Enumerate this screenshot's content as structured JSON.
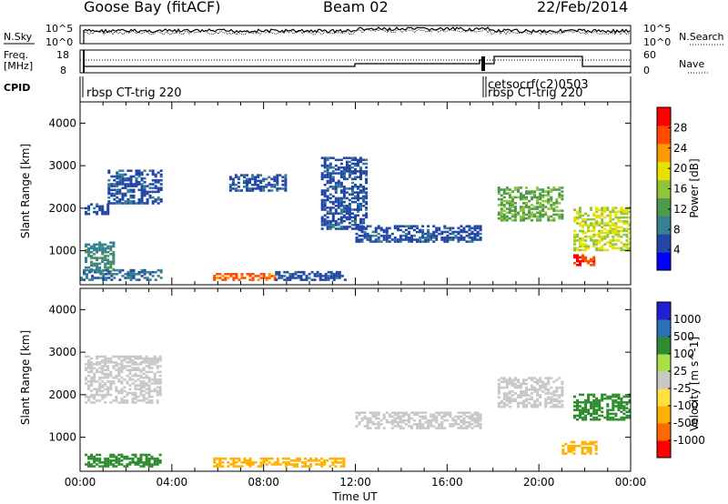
{
  "header": {
    "site": "Goose Bay (fitACF)",
    "beam": "Beam 02",
    "date": "22/Feb/2014"
  },
  "labels": {
    "nsky": "N.Sky",
    "nsearch": "N.Search",
    "freq_line1": "Freq.",
    "freq_line2": "[MHz]",
    "nave": "Nave",
    "cpid": "CPID",
    "cpid_main": "rbsp CT-trig 220",
    "cpid_mid_1": "cetsocrf(c2)0503",
    "cpid_mid_2": "rbsp CT-trig 220"
  },
  "ticks": {
    "nsky": [
      "10^5",
      "10^0"
    ],
    "nsearch": [
      "10^5",
      "10^0"
    ],
    "freq": [
      "18",
      "8"
    ],
    "nave": [
      "60",
      "0"
    ]
  },
  "colors": {
    "power_scale": [
      "#0000ff",
      "#2347a6",
      "#36808f",
      "#4d9a4d",
      "#8fc53b",
      "#e8e000",
      "#ff9900",
      "#ff4a00",
      "#ff0000"
    ],
    "velocity_scale": [
      "#ff0000",
      "#ff6a00",
      "#ffb000",
      "#ffe040",
      "#c8c8c8",
      "#a8e04a",
      "#2e8c2e",
      "#2a70b8",
      "#2020d0"
    ]
  },
  "chart_data": [
    {
      "type": "heatmap",
      "title": "Power",
      "xlabel": "",
      "ylabel": "Slant Range [km]",
      "xlim": [
        "00:00",
        "24:00"
      ],
      "ylim": [
        200,
        4500
      ],
      "x_ticks": [
        "00:00",
        "04:00",
        "08:00",
        "12:00",
        "16:00",
        "20:00",
        "00:00"
      ],
      "y_ticks": [
        "1000",
        "2000",
        "3000",
        "4000"
      ],
      "colorbar_label": "Power [dB]",
      "colorbar_ticks": [
        "4",
        "8",
        "12",
        "16",
        "20",
        "24",
        "28"
      ],
      "colorbar_range": [
        0,
        32
      ],
      "features": [
        {
          "t_start": 0.2,
          "t_end": 1.2,
          "r_start": 1850,
          "r_end": 2100,
          "value": 6
        },
        {
          "t_start": 1.2,
          "t_end": 3.5,
          "r_start": 2100,
          "r_end": 2900,
          "value": 6
        },
        {
          "t_start": 0.2,
          "t_end": 1.5,
          "r_start": 500,
          "r_end": 1200,
          "value": 10
        },
        {
          "t_start": 0.0,
          "t_end": 3.5,
          "r_start": 300,
          "r_end": 550,
          "value": 8
        },
        {
          "t_start": 5.8,
          "t_end": 8.5,
          "r_start": 300,
          "r_end": 450,
          "value": 26
        },
        {
          "t_start": 8.5,
          "t_end": 11.5,
          "r_start": 300,
          "r_end": 500,
          "value": 6
        },
        {
          "t_start": 6.5,
          "t_end": 9.0,
          "r_start": 2400,
          "r_end": 2800,
          "value": 6
        },
        {
          "t_start": 10.5,
          "t_end": 12.5,
          "r_start": 1500,
          "r_end": 3200,
          "value": 6
        },
        {
          "t_start": 12.0,
          "t_end": 17.5,
          "r_start": 1200,
          "r_end": 1600,
          "value": 6
        },
        {
          "t_start": 18.2,
          "t_end": 21.0,
          "r_start": 1700,
          "r_end": 2500,
          "value": 14
        },
        {
          "t_start": 21.5,
          "t_end": 24.0,
          "r_start": 1000,
          "r_end": 2000,
          "value": 18
        },
        {
          "t_start": 21.5,
          "t_end": 22.4,
          "r_start": 650,
          "r_end": 900,
          "value": 28
        }
      ]
    },
    {
      "type": "heatmap",
      "title": "Velocity",
      "xlabel": "Time UT",
      "ylabel": "Slant Range [km]",
      "xlim": [
        "00:00",
        "24:00"
      ],
      "ylim": [
        200,
        4500
      ],
      "x_ticks": [
        "00:00",
        "04:00",
        "08:00",
        "12:00",
        "16:00",
        "20:00",
        "00:00"
      ],
      "y_ticks": [
        "1000",
        "2000",
        "3000",
        "4000"
      ],
      "colorbar_label": "Velocity [m s^-1]",
      "colorbar_ticks": [
        "1000",
        "500",
        "100",
        "25",
        "-25",
        "-100",
        "-500",
        "-1000"
      ],
      "features": [
        {
          "t_start": 0.2,
          "t_end": 3.5,
          "r_start": 1800,
          "r_end": 2900,
          "value": 0
        },
        {
          "t_start": 0.2,
          "t_end": 3.5,
          "r_start": 300,
          "r_end": 600,
          "value": 200
        },
        {
          "t_start": 5.8,
          "t_end": 11.5,
          "r_start": 300,
          "r_end": 500,
          "value": -150
        },
        {
          "t_start": 12.0,
          "t_end": 17.5,
          "r_start": 1200,
          "r_end": 1600,
          "value": 0
        },
        {
          "t_start": 18.2,
          "t_end": 21.0,
          "r_start": 1700,
          "r_end": 2400,
          "value": 0
        },
        {
          "t_start": 21.5,
          "t_end": 24.0,
          "r_start": 1400,
          "r_end": 2000,
          "value": 150
        },
        {
          "t_start": 21.0,
          "t_end": 22.5,
          "r_start": 600,
          "r_end": 900,
          "value": -300
        }
      ]
    }
  ]
}
